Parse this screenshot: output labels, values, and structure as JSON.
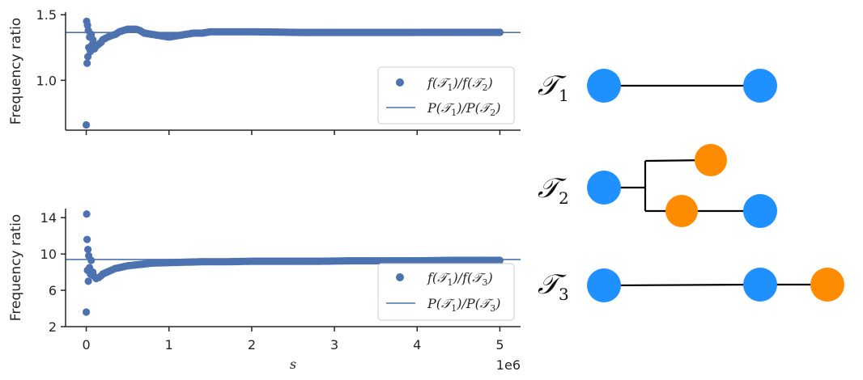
{
  "chart_data": [
    {
      "type": "scatter",
      "ylabel": "Frequency ratio",
      "xlabel": "",
      "xlim": [
        -250000,
        5250000
      ],
      "ylim": [
        0.62,
        1.52
      ],
      "yticks": [
        1.0,
        1.5
      ],
      "ytick_labels": [
        "1.0",
        "1.5"
      ],
      "xticks": [
        0,
        1000000,
        2000000,
        3000000,
        4000000,
        5000000
      ],
      "xtick_labels_visible": false,
      "reference_line": {
        "name": "P(T1)/P(T2)",
        "value": 1.365
      },
      "legend": {
        "placement": "lower-right",
        "entries": [
          {
            "kind": "marker",
            "label_main": "f(",
            "t_a": "1",
            "mid": ")/f(",
            "t_b": "2",
            "end": ")"
          },
          {
            "kind": "line",
            "label_main": "P(",
            "t_a": "1",
            "mid": ")/P(",
            "t_b": "2",
            "end": ")"
          }
        ]
      },
      "series": [
        {
          "name": "f(T1)/f(T2)",
          "x": [
            0,
            5000,
            10000,
            15000,
            20000,
            25000,
            30000,
            40000,
            50000,
            60000,
            70000,
            80000,
            100000,
            120000,
            140000,
            160000,
            180000,
            200000,
            230000,
            260000,
            300000,
            350000,
            400000,
            450000,
            500000,
            550000,
            600000,
            650000,
            700000,
            800000,
            900000,
            1000000,
            1100000,
            1200000,
            1300000,
            1400000,
            1500000,
            1700000,
            2000000,
            2300000,
            2600000,
            3000000,
            3400000,
            3800000,
            4200000,
            4600000,
            5000000
          ],
          "y": [
            0.66,
            1.45,
            1.13,
            1.42,
            1.18,
            1.38,
            1.25,
            1.33,
            1.22,
            1.35,
            1.27,
            1.31,
            1.24,
            1.26,
            1.27,
            1.28,
            1.29,
            1.31,
            1.32,
            1.33,
            1.34,
            1.35,
            1.37,
            1.38,
            1.39,
            1.39,
            1.39,
            1.38,
            1.36,
            1.35,
            1.34,
            1.33,
            1.34,
            1.35,
            1.36,
            1.36,
            1.37,
            1.37,
            1.37,
            1.368,
            1.365,
            1.365,
            1.365,
            1.365,
            1.366,
            1.366,
            1.366
          ]
        }
      ],
      "colors": {
        "points": "#4c72b0",
        "line": "#4c72b0"
      }
    },
    {
      "type": "scatter",
      "ylabel": "Frequency ratio",
      "xlabel": "s",
      "x_offset_label": "1e6",
      "xlim": [
        -250000,
        5250000
      ],
      "ylim": [
        2,
        15
      ],
      "yticks": [
        2,
        6,
        10,
        14
      ],
      "ytick_labels": [
        "2",
        "6",
        "10",
        "14"
      ],
      "xticks": [
        0,
        1000000,
        2000000,
        3000000,
        4000000,
        5000000
      ],
      "xtick_labels": [
        "0",
        "1",
        "2",
        "3",
        "4",
        "5"
      ],
      "reference_line": {
        "name": "P(T1)/P(T3)",
        "value": 9.4
      },
      "legend": {
        "placement": "lower-right",
        "entries": [
          {
            "kind": "marker",
            "label_main": "f(",
            "t_a": "1",
            "mid": ")/f(",
            "t_b": "3",
            "end": ")"
          },
          {
            "kind": "line",
            "label_main": "P(",
            "t_a": "1",
            "mid": ")/P(",
            "t_b": "3",
            "end": ")"
          }
        ]
      },
      "series": [
        {
          "name": "f(T1)/f(T3)",
          "x": [
            0,
            5000,
            10000,
            15000,
            20000,
            25000,
            30000,
            40000,
            50000,
            60000,
            70000,
            80000,
            100000,
            120000,
            150000,
            180000,
            200000,
            250000,
            300000,
            350000,
            400000,
            500000,
            600000,
            700000,
            800000,
            1000000,
            1200000,
            1400000,
            1700000,
            2000000,
            2400000,
            2800000,
            3200000,
            3600000,
            4000000,
            4400000,
            4800000,
            5000000
          ],
          "y": [
            3.6,
            14.4,
            11.6,
            8.2,
            10.5,
            7.0,
            9.8,
            8.5,
            7.8,
            9.3,
            7.7,
            8.0,
            7.5,
            7.3,
            7.4,
            7.6,
            7.8,
            8.0,
            8.2,
            8.4,
            8.5,
            8.7,
            8.8,
            8.9,
            9.0,
            9.05,
            9.1,
            9.15,
            9.15,
            9.2,
            9.2,
            9.2,
            9.25,
            9.25,
            9.25,
            9.3,
            9.3,
            9.3
          ]
        }
      ],
      "colors": {
        "points": "#4c72b0",
        "line": "#4c72b0"
      }
    }
  ],
  "trees": {
    "t1": {
      "symbol": "T",
      "subscript": "1"
    },
    "t2": {
      "symbol": "T",
      "subscript": "2"
    },
    "t3": {
      "symbol": "T",
      "subscript": "3"
    },
    "colors": {
      "blue": "#1e90ff",
      "orange": "#ff8c00",
      "edge": "#000000"
    }
  }
}
